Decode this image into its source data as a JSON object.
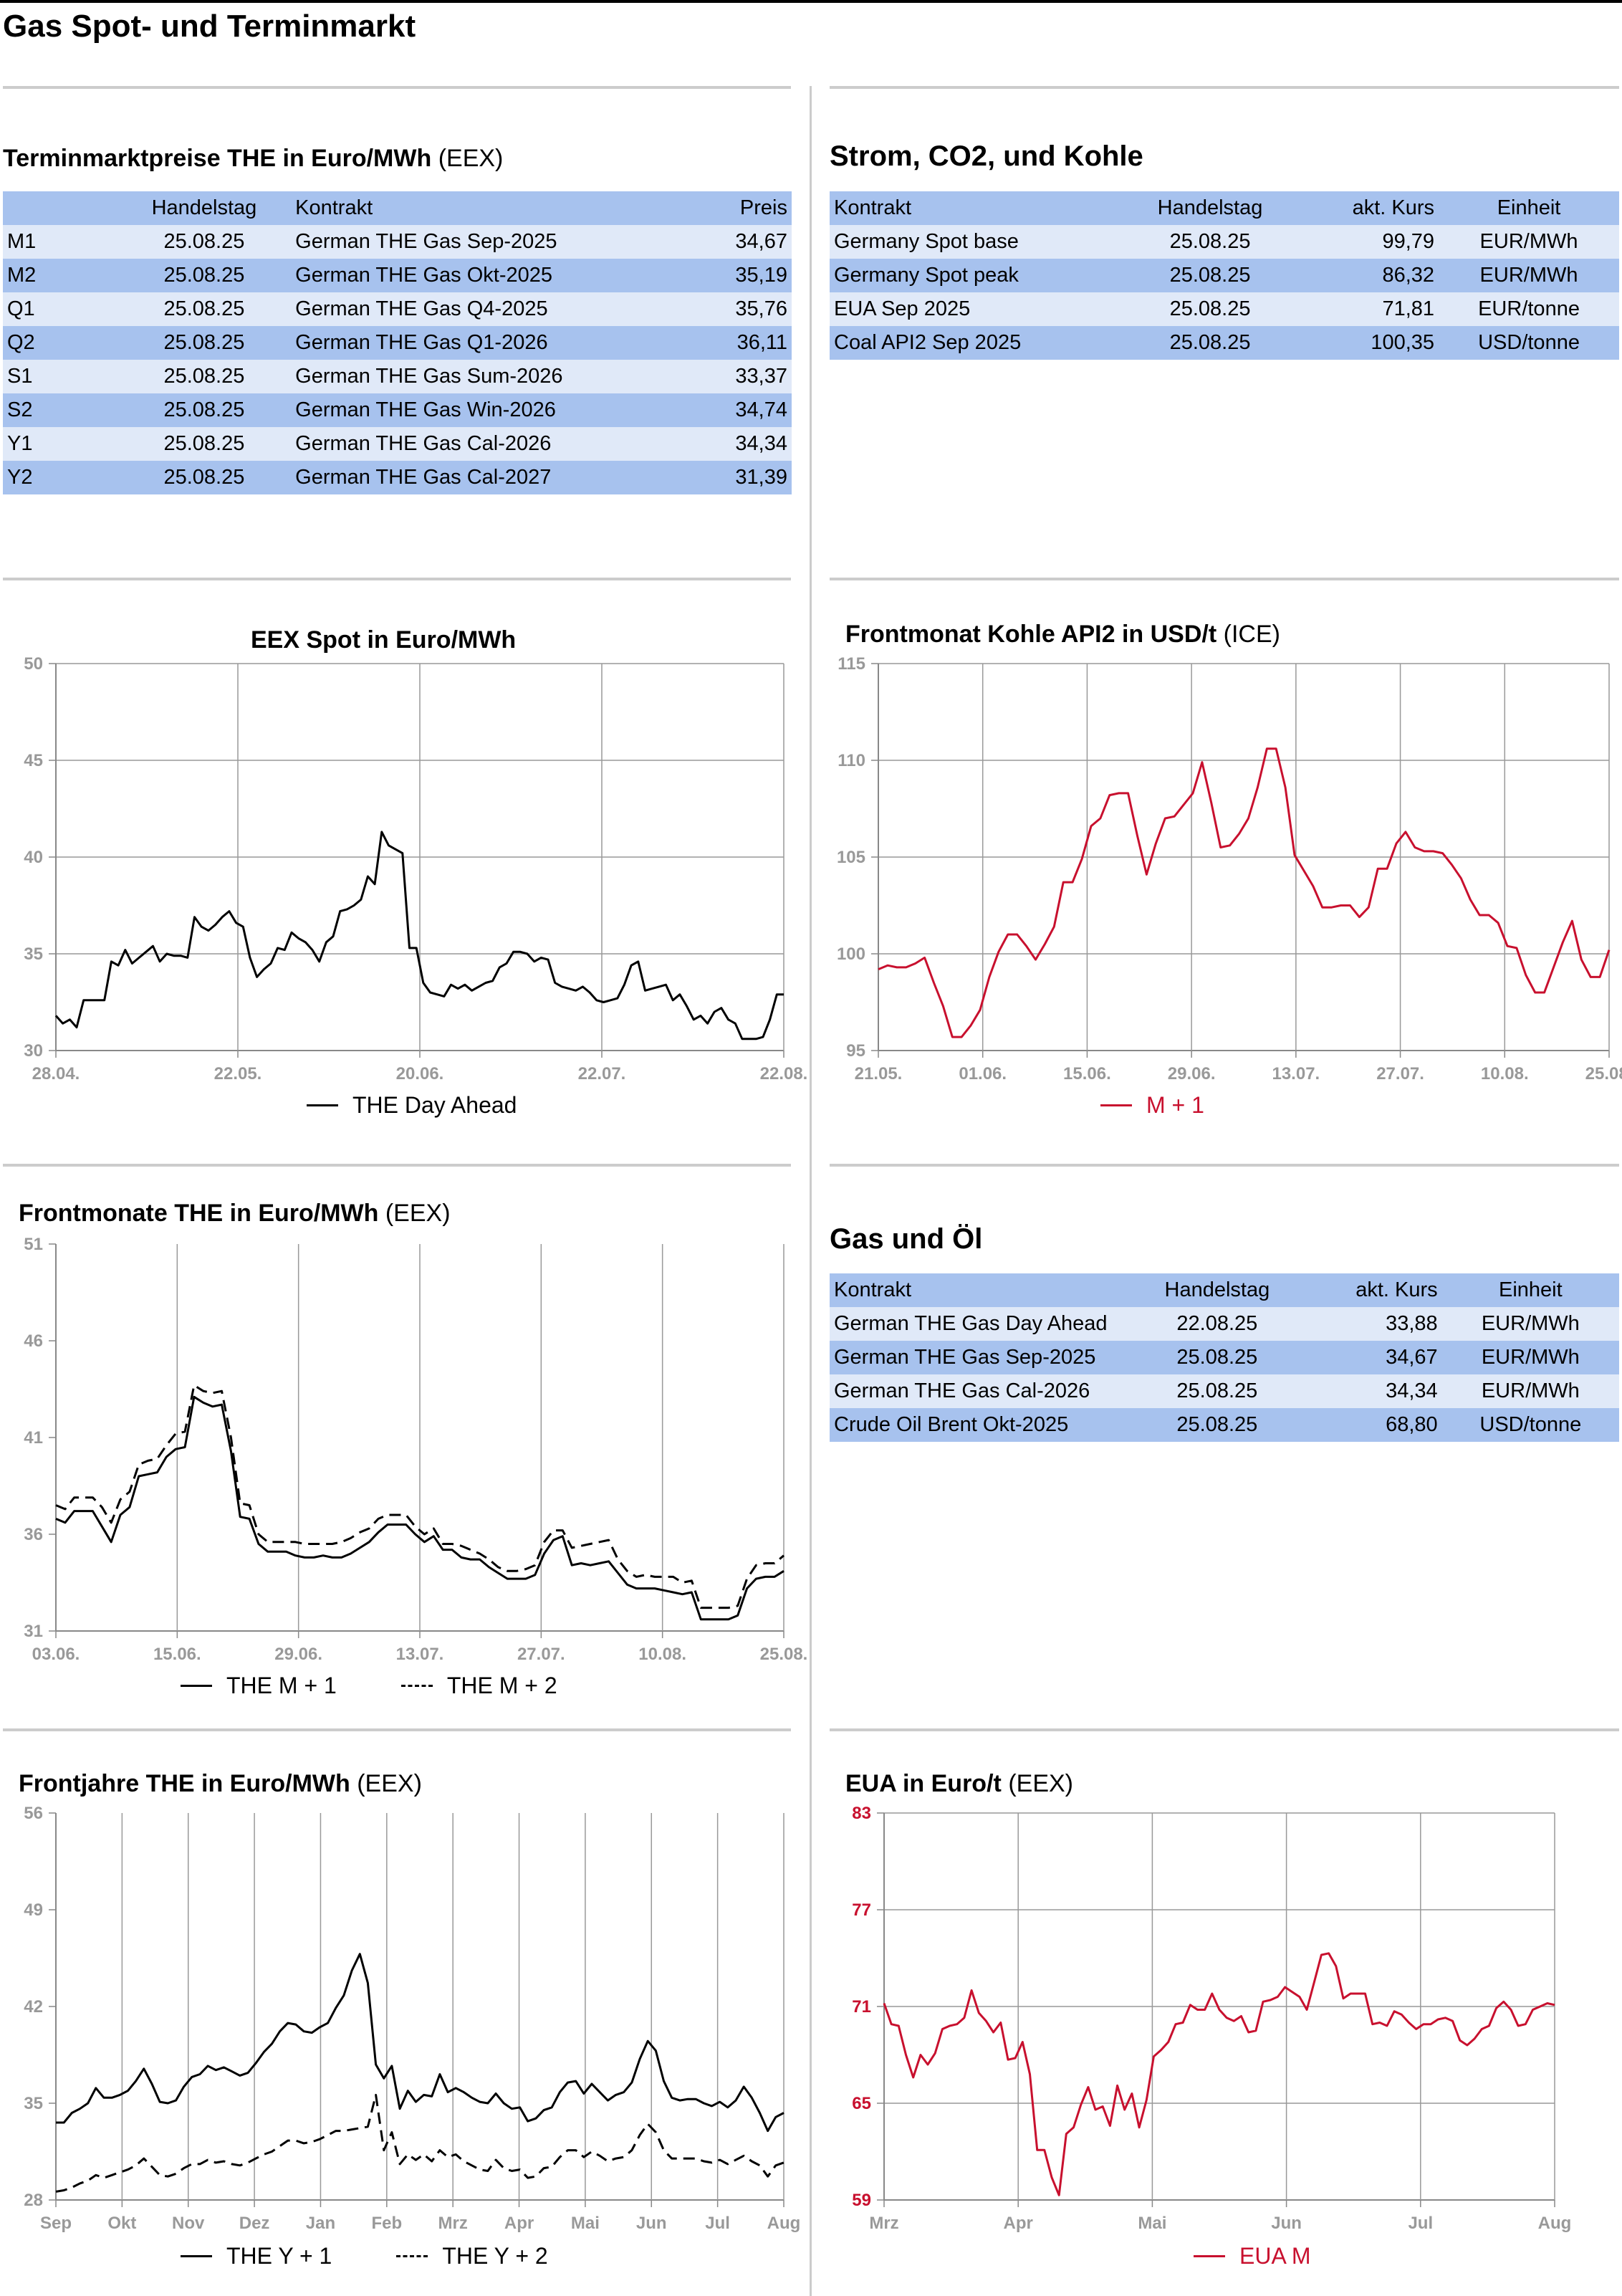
{
  "page_title": "Gas Spot- und Terminmarkt",
  "termin": {
    "title": "Terminmarktpreise THE in Euro/MWh",
    "source": "(EEX)",
    "headers": [
      "",
      "Handelstag",
      "Kontrakt",
      "Preis"
    ],
    "rows": [
      [
        "M1",
        "25.08.25",
        "German THE Gas Sep-2025",
        "34,67"
      ],
      [
        "M2",
        "25.08.25",
        "German THE Gas Okt-2025",
        "35,19"
      ],
      [
        "Q1",
        "25.08.25",
        "German THE Gas Q4-2025",
        "35,76"
      ],
      [
        "Q2",
        "25.08.25",
        "German THE Gas Q1-2026",
        "36,11"
      ],
      [
        "S1",
        "25.08.25",
        "German THE Gas Sum-2026",
        "33,37"
      ],
      [
        "S2",
        "25.08.25",
        "German THE Gas Win-2026",
        "34,74"
      ],
      [
        "Y1",
        "25.08.25",
        "German THE Gas Cal-2026",
        "34,34"
      ],
      [
        "Y2",
        "25.08.25",
        "German THE Gas Cal-2027",
        "31,39"
      ]
    ]
  },
  "strom": {
    "title": "Strom, CO2, und Kohle",
    "headers": [
      "Kontrakt",
      "Handelstag",
      "akt. Kurs",
      "Einheit"
    ],
    "rows": [
      [
        "Germany Spot base",
        "25.08.25",
        "99,79",
        "EUR/MWh"
      ],
      [
        "Germany Spot peak",
        "25.08.25",
        "86,32",
        "EUR/MWh"
      ],
      [
        "EUA Sep 2025",
        "25.08.25",
        "71,81",
        "EUR/tonne"
      ],
      [
        "Coal API2 Sep 2025",
        "25.08.25",
        "100,35",
        "USD/tonne"
      ]
    ]
  },
  "gasoel": {
    "title": "Gas und Öl",
    "headers": [
      "Kontrakt",
      "Handelstag",
      "akt. Kurs",
      "Einheit"
    ],
    "rows": [
      [
        "German THE Gas Day Ahead",
        "22.08.25",
        "33,88",
        "EUR/MWh"
      ],
      [
        "German THE Gas Sep-2025",
        "25.08.25",
        "34,67",
        "EUR/MWh"
      ],
      [
        "German THE Gas Cal-2026",
        "25.08.25",
        "34,34",
        "EUR/MWh"
      ],
      [
        "Crude Oil Brent Okt-2025",
        "25.08.25",
        "68,80",
        "USD/tonne"
      ]
    ]
  },
  "chart_data": [
    {
      "id": "spot",
      "type": "line",
      "title": "EEX Spot in Euro/MWh",
      "source": "",
      "y_ticks": [
        "30",
        "35",
        "40",
        "45",
        "50"
      ],
      "ylim": [
        30,
        50
      ],
      "x_ticks": [
        "28.04.",
        "22.05.",
        "20.06.",
        "22.07.",
        "22.08."
      ],
      "grid": "vertical+horizontal",
      "series": [
        {
          "name": "THE Day Ahead",
          "color": "#000000",
          "dash": false,
          "values": [
            31.8,
            31.4,
            31.6,
            31.2,
            32.6,
            32.6,
            32.6,
            32.6,
            34.6,
            34.4,
            35.2,
            34.5,
            34.8,
            35.1,
            35.4,
            34.6,
            35.0,
            34.9,
            34.9,
            34.8,
            36.9,
            36.4,
            36.2,
            36.5,
            36.9,
            37.2,
            36.6,
            36.4,
            34.8,
            33.8,
            34.2,
            34.5,
            35.3,
            35.2,
            36.1,
            35.8,
            35.6,
            35.2,
            34.6,
            35.6,
            35.9,
            37.2,
            37.3,
            37.5,
            37.8,
            39.0,
            38.6,
            41.3,
            40.6,
            40.4,
            40.2,
            35.3,
            35.3,
            33.5,
            33.0,
            32.9,
            32.8,
            33.4,
            33.2,
            33.4,
            33.1,
            33.3,
            33.5,
            33.6,
            34.3,
            34.5,
            35.1,
            35.1,
            35.0,
            34.6,
            34.8,
            34.7,
            33.5,
            33.3,
            33.2,
            33.1,
            33.3,
            33.0,
            32.6,
            32.5,
            32.6,
            32.7,
            33.4,
            34.4,
            34.6,
            33.1,
            33.2,
            33.3,
            33.4,
            32.6,
            32.9,
            32.3,
            31.6,
            31.8,
            31.4,
            32.0,
            32.2,
            31.6,
            31.4,
            30.6,
            30.6,
            30.6,
            30.7,
            31.6,
            32.9,
            32.9
          ]
        }
      ]
    },
    {
      "id": "kohle",
      "type": "line",
      "title": "Frontmonat Kohle API2 in USD/t",
      "source": "(ICE)",
      "y_ticks": [
        "95",
        "100",
        "105",
        "110",
        "115"
      ],
      "ylim": [
        95,
        115
      ],
      "x_ticks": [
        "21.05.",
        "01.06.",
        "15.06.",
        "29.06.",
        "13.07.",
        "27.07.",
        "10.08.",
        "25.08."
      ],
      "grid": "vertical+horizontal",
      "series": [
        {
          "name": "M + 1",
          "color": "#c8102e",
          "dash": false,
          "values": [
            99.2,
            99.4,
            99.3,
            99.3,
            99.5,
            99.8,
            98.5,
            97.3,
            95.7,
            95.7,
            96.3,
            97.1,
            98.8,
            100.1,
            101.0,
            101.0,
            100.4,
            99.7,
            100.5,
            101.4,
            103.7,
            103.7,
            104.9,
            106.6,
            107.0,
            108.2,
            108.3,
            108.3,
            106.1,
            104.1,
            105.7,
            107.0,
            107.1,
            107.7,
            108.3,
            109.9,
            107.8,
            105.5,
            105.6,
            106.2,
            107.0,
            108.6,
            110.6,
            110.6,
            108.6,
            105.1,
            104.3,
            103.5,
            102.4,
            102.4,
            102.5,
            102.5,
            101.9,
            102.4,
            104.4,
            104.4,
            105.7,
            106.3,
            105.5,
            105.3,
            105.3,
            105.2,
            104.6,
            103.9,
            102.8,
            102.0,
            102.0,
            101.6,
            100.4,
            100.3,
            98.9,
            98.0,
            98.0,
            99.3,
            100.6,
            101.7,
            99.7,
            98.8,
            98.8,
            100.2
          ]
        }
      ]
    },
    {
      "id": "frontmonate",
      "type": "line",
      "title": "Frontmonate THE in Euro/MWh",
      "source": "(EEX)",
      "y_ticks": [
        "31",
        "36",
        "41",
        "46",
        "51"
      ],
      "ylim": [
        31,
        51
      ],
      "x_ticks": [
        "03.06.",
        "15.06.",
        "29.06.",
        "13.07.",
        "27.07.",
        "10.08.",
        "25.08."
      ],
      "grid": "vertical",
      "series": [
        {
          "name": "THE M + 1",
          "color": "#000000",
          "dash": false,
          "values": [
            36.8,
            36.6,
            37.2,
            37.2,
            37.2,
            36.4,
            35.6,
            37.0,
            37.4,
            39.0,
            39.1,
            39.2,
            40.0,
            40.4,
            40.5,
            43.1,
            42.8,
            42.6,
            42.7,
            40.3,
            36.9,
            36.8,
            35.5,
            35.1,
            35.1,
            35.1,
            34.9,
            34.8,
            34.8,
            34.9,
            34.8,
            34.8,
            35.0,
            35.3,
            35.6,
            36.1,
            36.5,
            36.5,
            36.5,
            36.0,
            35.6,
            35.9,
            35.2,
            35.2,
            34.8,
            34.7,
            34.7,
            34.3,
            34.0,
            33.7,
            33.7,
            33.7,
            33.9,
            35.0,
            35.7,
            35.9,
            34.4,
            34.5,
            34.4,
            34.5,
            34.6,
            34.0,
            33.4,
            33.2,
            33.2,
            33.2,
            33.1,
            33.0,
            32.9,
            33.0,
            31.6,
            31.6,
            31.6,
            31.6,
            31.8,
            33.2,
            33.7,
            33.8,
            33.8,
            34.1
          ]
        },
        {
          "name": "THE M + 2",
          "color": "#000000",
          "dash": true,
          "values": [
            37.5,
            37.3,
            37.9,
            37.9,
            37.9,
            37.4,
            36.6,
            37.8,
            38.2,
            39.6,
            39.8,
            39.9,
            40.6,
            41.2,
            41.3,
            43.7,
            43.4,
            43.3,
            43.4,
            41.0,
            37.6,
            37.5,
            36.0,
            35.6,
            35.6,
            35.6,
            35.6,
            35.5,
            35.5,
            35.5,
            35.5,
            35.6,
            35.8,
            36.1,
            36.3,
            36.8,
            37.0,
            37.0,
            37.0,
            36.4,
            36.0,
            36.3,
            35.5,
            35.5,
            35.4,
            35.2,
            35.0,
            34.7,
            34.3,
            34.1,
            34.1,
            34.2,
            34.4,
            35.6,
            36.2,
            36.2,
            35.3,
            35.4,
            35.5,
            35.6,
            35.7,
            34.7,
            34.1,
            33.8,
            33.9,
            33.8,
            33.8,
            33.8,
            33.5,
            33.6,
            32.2,
            32.2,
            32.2,
            32.2,
            32.3,
            33.7,
            34.4,
            34.5,
            34.5,
            34.9
          ]
        }
      ]
    },
    {
      "id": "frontjahre",
      "type": "line",
      "title": "Frontjahre THE in Euro/MWh",
      "source": "(EEX)",
      "y_ticks": [
        "28",
        "35",
        "42",
        "49",
        "56"
      ],
      "ylim": [
        28,
        56
      ],
      "x_ticks": [
        "Sep",
        "Okt",
        "Nov",
        "Dez",
        "Jan",
        "Feb",
        "Mrz",
        "Apr",
        "Mai",
        "Jun",
        "Jul",
        "Aug"
      ],
      "grid": "vertical",
      "series": [
        {
          "name": "THE Y + 1",
          "color": "#000000",
          "dash": false,
          "values": [
            33.6,
            33.6,
            34.3,
            34.6,
            35.0,
            36.1,
            35.4,
            35.4,
            35.6,
            35.9,
            36.6,
            37.5,
            36.4,
            35.1,
            35.0,
            35.2,
            36.2,
            36.9,
            37.1,
            37.7,
            37.4,
            37.6,
            37.3,
            37.0,
            37.2,
            37.9,
            38.7,
            39.3,
            40.2,
            40.8,
            40.7,
            40.2,
            40.1,
            40.5,
            40.8,
            41.9,
            42.8,
            44.6,
            45.8,
            43.7,
            37.8,
            36.8,
            37.7,
            34.6,
            35.9,
            35.1,
            35.6,
            35.5,
            37.1,
            35.8,
            36.1,
            35.8,
            35.4,
            35.1,
            35.0,
            35.7,
            35.0,
            34.6,
            34.7,
            33.7,
            33.9,
            34.5,
            34.7,
            35.8,
            36.5,
            36.6,
            35.7,
            36.4,
            35.8,
            35.2,
            35.6,
            35.8,
            36.5,
            38.2,
            39.5,
            38.8,
            36.6,
            35.4,
            35.2,
            35.3,
            35.3,
            35.0,
            34.8,
            35.1,
            34.7,
            35.2,
            36.2,
            35.4,
            34.3,
            33.0,
            34.0,
            34.3
          ]
        },
        {
          "name": "THE Y + 2",
          "color": "#000000",
          "dash": true,
          "values": [
            28.6,
            28.7,
            28.9,
            29.2,
            29.4,
            29.8,
            29.6,
            29.8,
            30.0,
            30.2,
            30.5,
            31.0,
            30.4,
            29.8,
            29.7,
            29.9,
            30.3,
            30.6,
            30.6,
            30.9,
            30.7,
            30.8,
            30.6,
            30.5,
            30.7,
            31.0,
            31.3,
            31.5,
            31.9,
            32.3,
            32.3,
            32.1,
            32.2,
            32.4,
            32.7,
            33.0,
            33.0,
            33.1,
            33.2,
            33.3,
            35.6,
            31.6,
            32.9,
            30.6,
            31.3,
            30.9,
            31.3,
            30.8,
            31.6,
            31.1,
            31.3,
            30.8,
            30.5,
            30.2,
            30.1,
            30.9,
            30.3,
            30.1,
            30.2,
            29.6,
            29.7,
            30.3,
            30.4,
            31.1,
            31.6,
            31.6,
            31.1,
            31.5,
            31.2,
            30.8,
            31.0,
            31.1,
            31.6,
            32.7,
            33.5,
            32.9,
            31.6,
            31.0,
            31.0,
            31.0,
            31.0,
            30.8,
            30.7,
            30.9,
            30.6,
            30.9,
            31.2,
            30.8,
            30.5,
            29.7,
            30.5,
            30.7
          ]
        }
      ]
    },
    {
      "id": "eua",
      "type": "line",
      "title": "EUA in Euro/t",
      "source": "(EEX)",
      "y_ticks": [
        "59",
        "65",
        "71",
        "77",
        "83"
      ],
      "ylim": [
        59,
        83
      ],
      "x_ticks": [
        "Mrz",
        "Apr",
        "Mai",
        "Jun",
        "Jul",
        "Aug"
      ],
      "grid": "vertical+horizontal",
      "series": [
        {
          "name": "EUA M",
          "color": "#c8102e",
          "dash": false,
          "values": [
            71.2,
            69.9,
            69.8,
            68.0,
            66.6,
            68.0,
            67.4,
            68.1,
            69.6,
            69.8,
            69.9,
            70.3,
            72.0,
            70.6,
            70.1,
            69.4,
            70.0,
            67.7,
            67.8,
            68.8,
            66.8,
            62.1,
            62.1,
            60.4,
            59.3,
            63.1,
            63.5,
            64.9,
            66.0,
            64.6,
            64.8,
            63.6,
            66.1,
            64.6,
            65.6,
            63.5,
            65.2,
            67.9,
            68.3,
            68.8,
            69.9,
            70.0,
            71.1,
            70.8,
            70.8,
            71.8,
            70.8,
            70.3,
            70.1,
            70.4,
            69.4,
            69.5,
            71.3,
            71.4,
            71.6,
            72.2,
            71.9,
            71.6,
            70.8,
            72.5,
            74.2,
            74.3,
            73.5,
            71.5,
            71.8,
            71.8,
            71.8,
            69.9,
            70.0,
            69.8,
            70.7,
            70.5,
            70.0,
            69.6,
            69.9,
            69.9,
            70.2,
            70.3,
            70.1,
            68.9,
            68.6,
            69.0,
            69.6,
            69.8,
            70.9,
            71.3,
            70.8,
            69.8,
            69.9,
            70.8,
            71.0,
            71.2,
            71.1
          ]
        }
      ]
    }
  ]
}
